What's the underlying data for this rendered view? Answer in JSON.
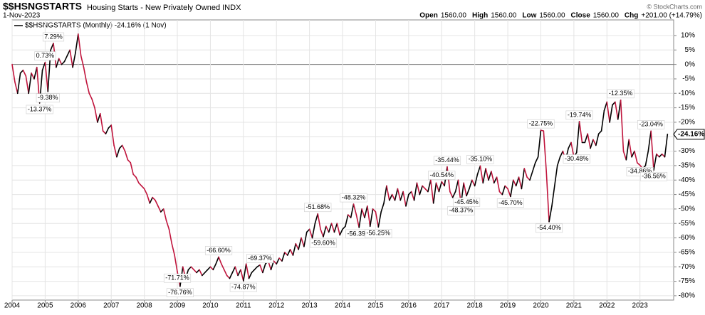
{
  "chart_data": {
    "type": "line",
    "symbol": "$$HSNGSTARTS",
    "title": "Housing Starts - New Privately Owned INDX",
    "date": "1-Nov-2023",
    "quote": [
      {
        "label": "Open",
        "value": "1560.00"
      },
      {
        "label": "High",
        "value": "1560.00"
      },
      {
        "label": "Low",
        "value": "1560.00"
      },
      {
        "label": "Close",
        "value": "1560.00"
      },
      {
        "label": "Chg",
        "value": "+201.00 (+14.79%)"
      }
    ],
    "credit": "© StockCharts.com",
    "legend": "$$HSNGSTARTS (Monthly) -24.16% (1 Nov)",
    "color_up": "#000000",
    "color_down": "#c0143c",
    "grid": true,
    "ylim": [
      -81.5,
      15.4
    ],
    "yticks": [
      {
        "value": 10,
        "label": "10%"
      },
      {
        "value": 5,
        "label": "5%"
      },
      {
        "value": 0,
        "label": "0%"
      },
      {
        "value": -5,
        "label": "-5%"
      },
      {
        "value": -10,
        "label": "-10%"
      },
      {
        "value": -15,
        "label": "-15%"
      },
      {
        "value": -20,
        "label": "-20%"
      },
      {
        "value": -25,
        "label": "-25%"
      },
      {
        "value": -30,
        "label": "-30%"
      },
      {
        "value": -35,
        "label": "-35%"
      },
      {
        "value": -40,
        "label": "-40%"
      },
      {
        "value": -45,
        "label": "-45%"
      },
      {
        "value": -50,
        "label": "-50%"
      },
      {
        "value": -55,
        "label": "-55%"
      },
      {
        "value": -60,
        "label": "-60%"
      },
      {
        "value": -65,
        "label": "-65%"
      },
      {
        "value": -70,
        "label": "-70%"
      },
      {
        "value": -75,
        "label": "-75%"
      },
      {
        "value": -80,
        "label": "-80%"
      }
    ],
    "categories": [
      "2004",
      null,
      null,
      null,
      null,
      null,
      null,
      null,
      null,
      null,
      null,
      null,
      "2005",
      null,
      null,
      null,
      null,
      null,
      null,
      null,
      null,
      null,
      null,
      null,
      "2006",
      null,
      null,
      null,
      null,
      null,
      null,
      null,
      null,
      null,
      null,
      null,
      "2007",
      null,
      null,
      null,
      null,
      null,
      null,
      null,
      null,
      null,
      null,
      null,
      "2008",
      null,
      null,
      null,
      null,
      null,
      null,
      null,
      null,
      null,
      null,
      null,
      "2009",
      null,
      null,
      null,
      null,
      null,
      null,
      null,
      null,
      null,
      null,
      null,
      "2010",
      null,
      null,
      null,
      null,
      null,
      null,
      null,
      null,
      null,
      null,
      null,
      "2011",
      null,
      null,
      null,
      null,
      null,
      null,
      null,
      null,
      null,
      null,
      null,
      "2012",
      null,
      null,
      null,
      null,
      null,
      null,
      null,
      null,
      null,
      null,
      null,
      "2013",
      null,
      null,
      null,
      null,
      null,
      null,
      null,
      null,
      null,
      null,
      null,
      "2014",
      null,
      null,
      null,
      null,
      null,
      null,
      null,
      null,
      null,
      null,
      null,
      "2015",
      null,
      null,
      null,
      null,
      null,
      null,
      null,
      null,
      null,
      null,
      null,
      "2016",
      null,
      null,
      null,
      null,
      null,
      null,
      null,
      null,
      null,
      null,
      null,
      "2017",
      null,
      null,
      null,
      null,
      null,
      null,
      null,
      null,
      null,
      null,
      null,
      "2018",
      null,
      null,
      null,
      null,
      null,
      null,
      null,
      null,
      null,
      null,
      null,
      "2019",
      null,
      null,
      null,
      null,
      null,
      null,
      null,
      null,
      null,
      null,
      null,
      "2020",
      null,
      null,
      null,
      null,
      null,
      null,
      null,
      null,
      null,
      null,
      null,
      "2021",
      null,
      null,
      null,
      null,
      null,
      null,
      null,
      null,
      null,
      null,
      null,
      "2022",
      null,
      null,
      null,
      null,
      null,
      null,
      null,
      null,
      null,
      null,
      null,
      "2023",
      null,
      null,
      null,
      null,
      null,
      null,
      null,
      null,
      null,
      null
    ],
    "values": [
      0,
      -6,
      -10,
      -3,
      -2,
      -4,
      -10,
      -3,
      -5,
      -1,
      -13.37,
      -2,
      0.73,
      -9.38,
      5,
      7.29,
      -1,
      2,
      0,
      1,
      3,
      5,
      -1,
      4,
      10.5,
      3,
      -1,
      -6,
      -10,
      -12,
      -15,
      -20,
      -17,
      -23,
      -24,
      -22,
      -21,
      -28,
      -32,
      -29,
      -28,
      -30,
      -33,
      -34,
      -38,
      -39,
      -41,
      -42,
      -43,
      -45,
      -48,
      -46,
      -47,
      -49,
      -51,
      -50,
      -54,
      -57,
      -62,
      -66,
      -71.71,
      -76.76,
      -70,
      -74,
      -71,
      -70,
      -71,
      -72,
      -71,
      -73,
      -72,
      -71,
      -70,
      -71,
      -69,
      -66.6,
      -69,
      -71,
      -73,
      -74,
      -72,
      -70,
      -73,
      -71,
      -74.87,
      -69,
      -74,
      -72,
      -71,
      -70,
      -69.37,
      -72,
      -69,
      -68,
      -71,
      -68,
      -69,
      -67,
      -68,
      -65,
      -66,
      -64,
      -66,
      -62,
      -64,
      -60,
      -63,
      -58,
      -57,
      -60,
      -55,
      -51.68,
      -57,
      -59.6,
      -56,
      -58,
      -55,
      -58,
      -55,
      -59,
      -57,
      -56,
      -52,
      -53,
      -48.32,
      -52,
      -56.39,
      -50,
      -53,
      -49,
      -56,
      -50,
      -51,
      -56.25,
      -51,
      -48,
      -42,
      -47,
      -45,
      -47,
      -43,
      -47,
      -44,
      -49,
      -45,
      -44,
      -47,
      -41,
      -45,
      -42,
      -43,
      -44,
      -40,
      -48,
      -41,
      -44,
      -40.54,
      -42,
      -35.44,
      -44,
      -46,
      -44,
      -40,
      -48.37,
      -41,
      -45.45,
      -43,
      -40,
      -42,
      -38,
      -35.1,
      -41,
      -36,
      -40,
      -37,
      -41,
      -39,
      -44,
      -45,
      -42,
      -43,
      -45.7,
      -40,
      -42,
      -39,
      -43,
      -36,
      -39,
      -40,
      -37,
      -34,
      -32,
      -22.75,
      -23,
      -37,
      -54.4,
      -49,
      -42,
      -35,
      -32,
      -30,
      -33,
      -29,
      -27,
      -32,
      -30.48,
      -19.74,
      -27,
      -27,
      -24,
      -29,
      -26,
      -28,
      -24,
      -23,
      -16,
      -13,
      -20,
      -14,
      -13,
      -19,
      -12.35,
      -30,
      -33,
      -26,
      -32,
      -30,
      -34,
      -34.86,
      -36,
      -35,
      -30,
      -23.04,
      -36.56,
      -31,
      -32,
      -31,
      -32,
      -24.16
    ],
    "value_labels": [
      null,
      null,
      null,
      null,
      null,
      null,
      null,
      null,
      null,
      null,
      "-13.37%",
      null,
      "0.73%",
      "-9.38%",
      null,
      "7.29%",
      null,
      null,
      null,
      null,
      null,
      null,
      null,
      null,
      null,
      null,
      null,
      null,
      null,
      null,
      null,
      null,
      null,
      null,
      null,
      null,
      null,
      null,
      null,
      null,
      null,
      null,
      null,
      null,
      null,
      null,
      null,
      null,
      null,
      null,
      null,
      null,
      null,
      null,
      null,
      null,
      null,
      null,
      null,
      null,
      "-71.71%",
      "-76.76%",
      null,
      null,
      null,
      null,
      null,
      null,
      null,
      null,
      null,
      null,
      null,
      null,
      null,
      "-66.60%",
      null,
      null,
      null,
      null,
      null,
      null,
      null,
      null,
      "-74.87%",
      null,
      null,
      null,
      null,
      null,
      "-69.37%",
      null,
      null,
      null,
      null,
      null,
      null,
      null,
      null,
      null,
      null,
      null,
      null,
      null,
      null,
      null,
      null,
      null,
      null,
      null,
      null,
      "-51.68%",
      null,
      "-59.60%",
      null,
      null,
      null,
      null,
      null,
      null,
      null,
      null,
      null,
      null,
      "-48.32%",
      null,
      "-56.39%",
      null,
      null,
      null,
      null,
      null,
      null,
      "-56.25%",
      null,
      null,
      null,
      null,
      null,
      null,
      null,
      null,
      null,
      null,
      null,
      null,
      null,
      null,
      null,
      null,
      null,
      null,
      null,
      null,
      null,
      null,
      "-40.54%",
      null,
      "-35.44%",
      null,
      null,
      null,
      null,
      "-48.37%",
      null,
      "-45.45%",
      null,
      null,
      null,
      null,
      "-35.10%",
      null,
      null,
      null,
      null,
      null,
      null,
      null,
      null,
      null,
      null,
      "-45.70%",
      null,
      null,
      null,
      null,
      null,
      null,
      null,
      null,
      null,
      null,
      "-22.75%",
      null,
      null,
      "-54.40%",
      null,
      null,
      null,
      null,
      null,
      null,
      null,
      null,
      null,
      "-30.48%",
      "-19.74%",
      null,
      null,
      null,
      null,
      null,
      null,
      null,
      null,
      null,
      null,
      null,
      null,
      null,
      null,
      "-12.35%",
      null,
      null,
      null,
      null,
      null,
      null,
      "-34.86%",
      null,
      null,
      null,
      "-23.04%",
      "-36.56%",
      null,
      null,
      null,
      null,
      "-24.16%"
    ]
  }
}
